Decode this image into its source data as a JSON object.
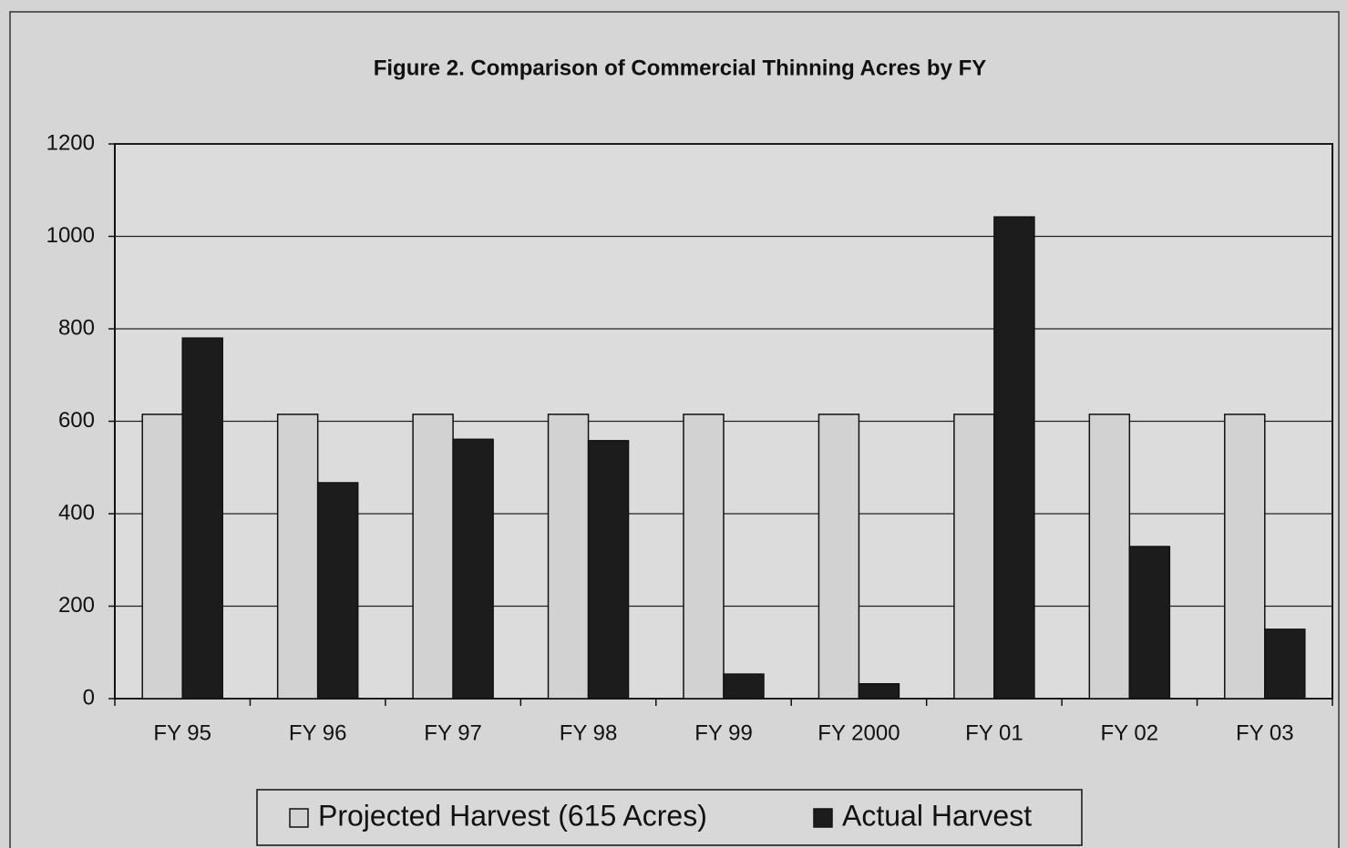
{
  "chart_data": {
    "type": "bar",
    "title": "Figure 2. Comparison of Commercial Thinning Acres by FY",
    "categories": [
      "FY 95",
      "FY 96",
      "FY 97",
      "FY 98",
      "FY 99",
      "FY 2000",
      "FY 01",
      "FY 02",
      "FY 03"
    ],
    "series": [
      {
        "name": "Projected Harvest (615 Acres)",
        "color": "#d2d2d2",
        "values": [
          615,
          615,
          615,
          615,
          615,
          615,
          615,
          615,
          615
        ]
      },
      {
        "name": "Actual Harvest",
        "color": "#1c1c1c",
        "values": [
          780,
          467,
          561,
          558,
          53,
          32,
          1042,
          329,
          150
        ]
      }
    ],
    "ylim": [
      0,
      1200
    ],
    "yticks": [
      0,
      200,
      400,
      600,
      800,
      1000,
      1200
    ],
    "grid": true,
    "legend": "bottom"
  }
}
